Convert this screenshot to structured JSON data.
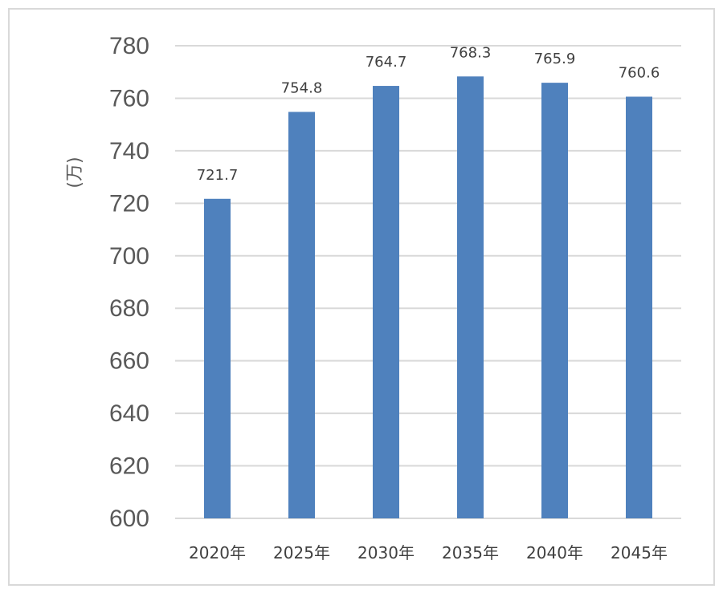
{
  "chart_data": {
    "type": "bar",
    "categories": [
      "2020年",
      "2025年",
      "2030年",
      "2035年",
      "2040年",
      "2045年"
    ],
    "values": [
      721.7,
      754.8,
      764.7,
      768.3,
      765.9,
      760.6
    ],
    "data_labels": [
      "721.7",
      "754.8",
      "764.7",
      "768.3",
      "765.9",
      "760.6"
    ],
    "ylabel": "(万)",
    "ylim": [
      600,
      780
    ],
    "yticks": [
      "600",
      "620",
      "640",
      "660",
      "680",
      "700",
      "720",
      "740",
      "760",
      "780"
    ],
    "grid": true,
    "bar_color": "#4f81bd",
    "grid_color": "#d9d9d9"
  }
}
